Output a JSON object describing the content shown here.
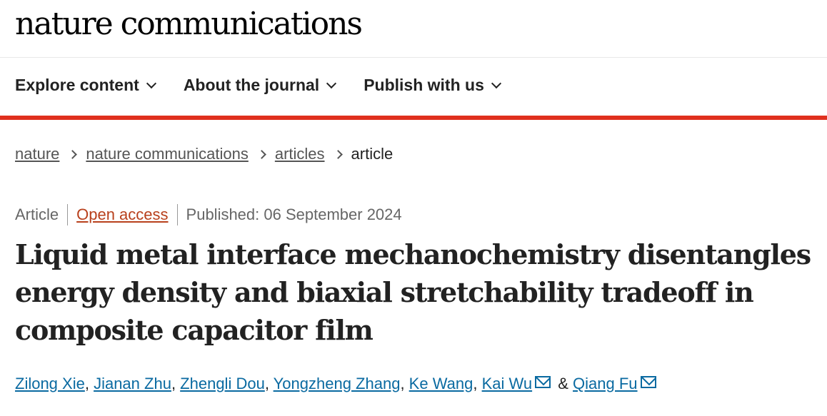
{
  "header": {
    "logo": "nature communications"
  },
  "nav": [
    {
      "label": "Explore content"
    },
    {
      "label": "About the journal"
    },
    {
      "label": "Publish with us"
    }
  ],
  "breadcrumb": [
    {
      "label": "nature"
    },
    {
      "label": "nature communications"
    },
    {
      "label": "articles"
    },
    {
      "label": "article"
    }
  ],
  "meta": {
    "type": "Article",
    "access": "Open access",
    "published": "Published: 06 September 2024"
  },
  "title": "Liquid metal interface mechanochemistry disentangles energy density and biaxial stretchability tradeoff in composite capacitor film",
  "authors": [
    {
      "name": "Zilong Xie"
    },
    {
      "name": "Jianan Zhu"
    },
    {
      "name": "Zhengli Dou"
    },
    {
      "name": "Yongzheng Zhang"
    },
    {
      "name": "Ke Wang"
    },
    {
      "name": "Kai Wu"
    },
    {
      "name": "Qiang Fu"
    }
  ],
  "authors_conj": "&",
  "colors": {
    "accent": "#e0301e",
    "link": "#0a6aa1",
    "open_access": "#b8401c"
  }
}
